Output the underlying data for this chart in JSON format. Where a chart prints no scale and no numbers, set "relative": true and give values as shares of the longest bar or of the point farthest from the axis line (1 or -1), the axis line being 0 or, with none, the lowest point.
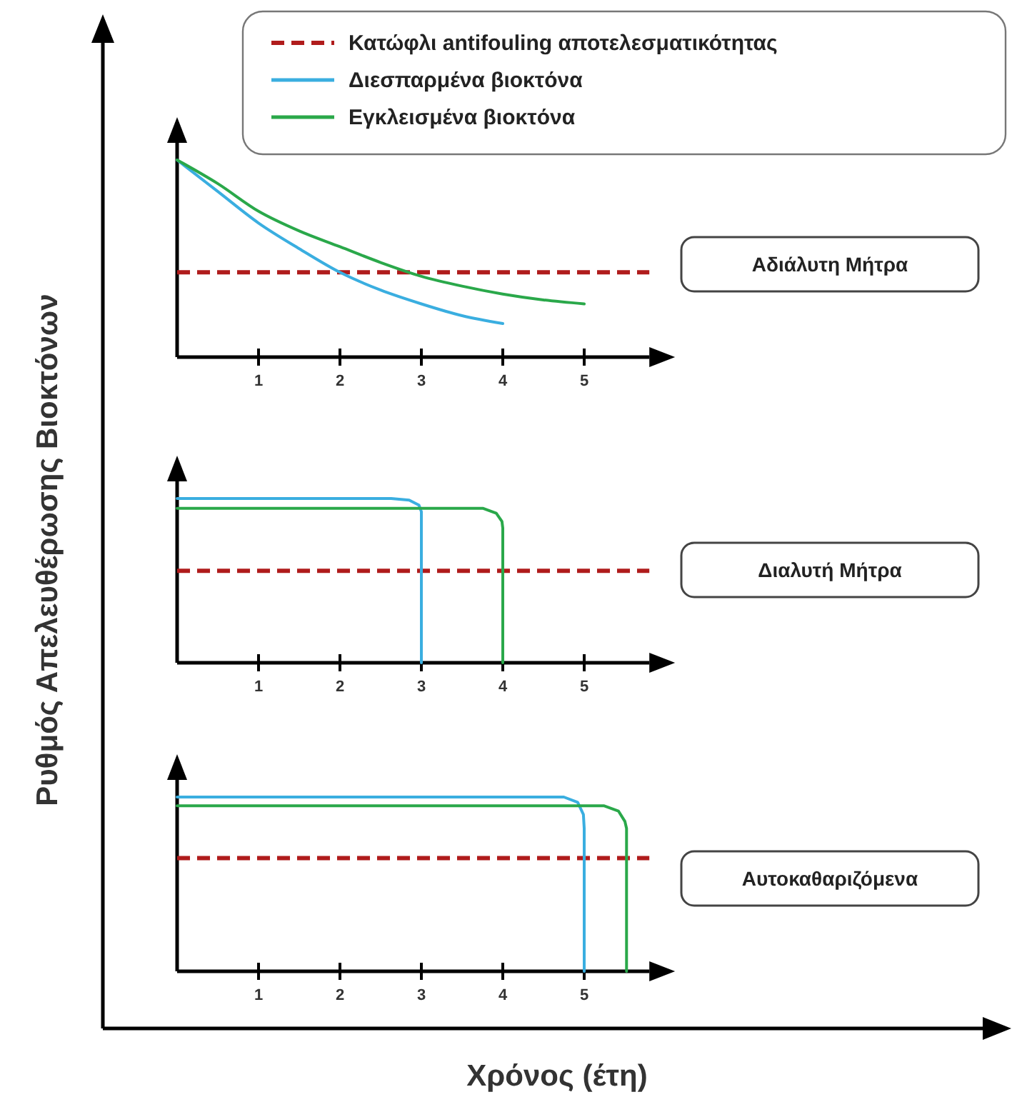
{
  "chart_data": [
    {
      "type": "line",
      "relative": true,
      "xlim": [
        0,
        5.8
      ],
      "xticks": [
        1,
        2,
        3,
        4,
        5
      ],
      "tick_labels": "x",
      "legend": "top",
      "annotations": [
        "Αδιάλυτη Μήτρα"
      ],
      "ref_lines": [
        {
          "axis": "y",
          "value": 0.43,
          "label": "Κατώφλι antifouling αποτελεσματικότητας",
          "color": "#b01c1c",
          "line_style": "dashed"
        }
      ],
      "series": [
        {
          "name": "Διεσπαρμένα βιοκτόνα",
          "color": "#3aaee0",
          "x": [
            0,
            0.5,
            1,
            1.5,
            2,
            2.5,
            3,
            3.5,
            4
          ],
          "values": [
            1,
            0.84,
            0.68,
            0.55,
            0.43,
            0.34,
            0.27,
            0.21,
            0.17
          ]
        },
        {
          "name": "Εγκλεισμένα βιοκτόνα",
          "color": "#2aa84a",
          "x": [
            0,
            0.5,
            1,
            1.5,
            2,
            2.5,
            3,
            3.5,
            4,
            4.5,
            5
          ],
          "values": [
            1,
            0.88,
            0.74,
            0.64,
            0.56,
            0.48,
            0.41,
            0.36,
            0.32,
            0.29,
            0.27
          ]
        }
      ]
    },
    {
      "type": "line",
      "relative": true,
      "xlim": [
        0,
        5.8
      ],
      "xticks": [
        1,
        2,
        3,
        4,
        5
      ],
      "tick_labels": "x",
      "annotations": [
        "Διαλυτή Μήτρα"
      ],
      "ylabel": "Ρυθμός Απελευθέρωσης Βιοκτόνων",
      "ref_lines": [
        {
          "axis": "y",
          "value": 0.56,
          "color": "#b01c1c",
          "line_style": "dashed"
        }
      ],
      "series": [
        {
          "color": "#3aaee0",
          "x": [
            0,
            2.63,
            2.85,
            2.97,
            3,
            3
          ],
          "values": [
            1,
            1,
            0.99,
            0.96,
            0.92,
            0
          ]
        },
        {
          "color": "#2aa84a",
          "x": [
            0,
            3.76,
            3.92,
            3.99,
            4,
            4
          ],
          "values": [
            0.94,
            0.94,
            0.91,
            0.86,
            0.82,
            0
          ]
        }
      ]
    },
    {
      "type": "line",
      "relative": true,
      "xlim": [
        0,
        5.8
      ],
      "xticks": [
        1,
        2,
        3,
        4,
        5
      ],
      "tick_labels": "x",
      "annotations": [
        "Αυτοκαθαριζόμενα"
      ],
      "xlabel": "Χρόνος (έτη)",
      "ref_lines": [
        {
          "axis": "y",
          "value": 0.65,
          "color": "#b01c1c",
          "line_style": "dashed"
        }
      ],
      "series": [
        {
          "color": "#3aaee0",
          "x": [
            0,
            4.75,
            4.92,
            4.99,
            5,
            5
          ],
          "values": [
            1,
            1,
            0.97,
            0.9,
            0.82,
            0
          ]
        },
        {
          "color": "#2aa84a",
          "x": [
            0,
            5.24,
            5.42,
            5.5,
            5.52,
            5.52
          ],
          "values": [
            0.95,
            0.95,
            0.92,
            0.86,
            0.82,
            0
          ]
        }
      ]
    }
  ]
}
